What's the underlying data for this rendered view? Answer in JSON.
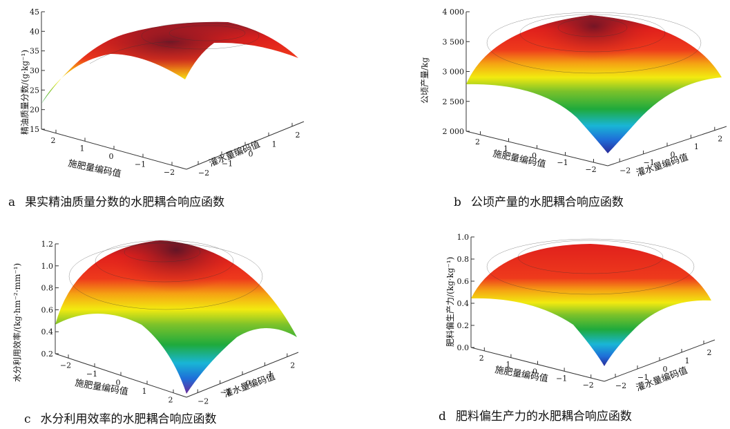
{
  "gradient": [
    "#2a2a9a",
    "#1e6fd8",
    "#19b5d6",
    "#1faa3c",
    "#7cc22a",
    "#f2ea10",
    "#f5a313",
    "#ee3a1c",
    "#e0201c",
    "#9a1a2a",
    "#5e1426"
  ],
  "panels": [
    {
      "letter": "a",
      "caption": "果实精油质量分数的水肥耦合响应函数",
      "ylabel": "精油质量分数/(g·kg⁻¹)",
      "xlabel": "施肥量编码值",
      "zlabel": "灌水量编码值",
      "chart_data": {
        "type": "surface",
        "title": "",
        "y_ticks": [
          "15",
          "20",
          "25",
          "30",
          "35",
          "40",
          "45"
        ],
        "x_ticks": [
          "2",
          "1",
          "0",
          "−1",
          "−2"
        ],
        "z_ticks": [
          "−2",
          "−1",
          "0",
          "1",
          "2"
        ],
        "ylim": [
          15,
          45
        ],
        "corner_values": {
          "far_left": 22,
          "peak": 41,
          "right": 33,
          "front": 27
        }
      }
    },
    {
      "letter": "b",
      "caption": "公顷产量的水肥耦合响应函数",
      "ylabel": "公顷产量/kg",
      "xlabel": "施肥量编码值",
      "zlabel": "灌水量编码值",
      "chart_data": {
        "type": "surface",
        "title": "",
        "y_ticks": [
          "2 000",
          "2 500",
          "3 000",
          "3 500",
          "4 000"
        ],
        "x_ticks": [
          "2",
          "1",
          "0",
          "−1",
          "−2"
        ],
        "z_ticks": [
          "−2",
          "−1",
          "0",
          "1",
          "2"
        ],
        "ylim": [
          2000,
          4000
        ],
        "corner_values": {
          "left": 2870,
          "peak": 3880,
          "right": 2850,
          "bottom": 2000
        }
      }
    },
    {
      "letter": "c",
      "caption": "水分利用效率的水肥耦合响应函数",
      "ylabel": "水分利用效率/(kg·hm⁻²·mm⁻¹)",
      "xlabel": "施肥量编码值",
      "zlabel": "灌水量编码值",
      "chart_data": {
        "type": "surface",
        "title": "",
        "y_ticks": [
          "0.2",
          "0.4",
          "0.6",
          "0.8",
          "1.0",
          "1.2"
        ],
        "x_ticks": [
          "−2",
          "−1",
          "0",
          "1",
          "2"
        ],
        "z_ticks": [
          "−2",
          "−1",
          "0",
          "1",
          "2"
        ],
        "ylim": [
          0.2,
          1.2
        ],
        "corner_values": {
          "left": 0.46,
          "peak": 1.17,
          "right": 0.43,
          "bottom": 0.2
        }
      }
    },
    {
      "letter": "d",
      "caption": "肥料偏生产力的水肥耦合响应函数",
      "ylabel": "肥料偏生产力/(kg·kg⁻¹)",
      "xlabel": "施肥量编码值",
      "zlabel": "灌水量编码值",
      "chart_data": {
        "type": "surface",
        "title": "",
        "y_ticks": [
          "0.0",
          "0.2",
          "0.4",
          "0.6",
          "0.8",
          "1.0"
        ],
        "x_ticks": [
          "2",
          "1",
          "0",
          "−1",
          "−2"
        ],
        "z_ticks": [
          "−2",
          "−1",
          "0",
          "1",
          "2"
        ],
        "ylim": [
          0,
          1
        ],
        "corner_values": {
          "left": 0.44,
          "peak": 0.87,
          "right": 0.42,
          "bottom": -0.02
        }
      }
    }
  ]
}
